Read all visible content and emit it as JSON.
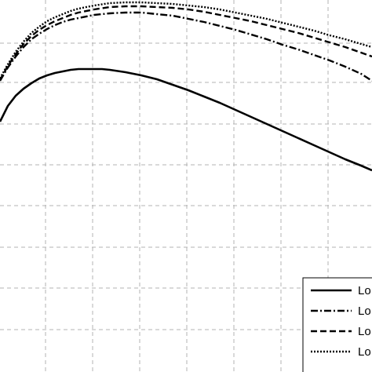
{
  "chart_data": {
    "type": "line",
    "title": "",
    "xlabel": "",
    "ylabel": "",
    "grid": true,
    "legend_placement": "bottom-right",
    "x_view": [
      0,
      474
    ],
    "y_view": [
      0,
      474
    ],
    "x_grid": [
      58,
      118,
      178,
      238,
      298,
      358,
      418
    ],
    "y_grid": [
      55,
      105,
      158,
      210,
      262,
      315,
      367,
      420
    ],
    "colors": {
      "line": "#000000",
      "grid": "#b3b3b3",
      "legend_border": "#000000"
    },
    "series": [
      {
        "name": "Lo",
        "style": "solid",
        "x": [
          0,
          10,
          20,
          30,
          40,
          50,
          60,
          70,
          80,
          90,
          100,
          110,
          120,
          130,
          140,
          160,
          180,
          200,
          220,
          240,
          260,
          280,
          300,
          320,
          340,
          360,
          380,
          400,
          420,
          440,
          460,
          474
        ],
        "y": [
          155,
          135,
          122,
          113,
          106,
          100,
          96,
          93,
          91,
          89,
          88,
          88,
          88,
          88,
          89,
          92,
          96,
          101,
          108,
          115,
          123,
          131,
          140,
          149,
          158,
          167,
          176,
          185,
          194,
          203,
          211,
          217
        ]
      },
      {
        "name": "Lo",
        "style": "dashdot",
        "x": [
          0,
          10,
          20,
          30,
          40,
          50,
          60,
          70,
          80,
          90,
          100,
          120,
          140,
          160,
          180,
          200,
          220,
          240,
          260,
          280,
          300,
          320,
          340,
          360,
          380,
          400,
          420,
          440,
          460,
          474
        ],
        "y": [
          103,
          86,
          72,
          60,
          50,
          43,
          37,
          32,
          28,
          25,
          23,
          19,
          17,
          16,
          16,
          18,
          20,
          24,
          28,
          33,
          38,
          44,
          50,
          57,
          63,
          70,
          77,
          85,
          94,
          103
        ]
      },
      {
        "name": "Lo",
        "style": "dashed",
        "x": [
          0,
          10,
          20,
          30,
          40,
          50,
          60,
          70,
          80,
          90,
          100,
          120,
          140,
          160,
          180,
          200,
          220,
          240,
          260,
          280,
          300,
          320,
          340,
          360,
          380,
          400,
          420,
          440,
          460,
          474
        ],
        "y": [
          102,
          84,
          69,
          56,
          46,
          38,
          32,
          27,
          23,
          19,
          16,
          12,
          9,
          8,
          8,
          9,
          10,
          12,
          15,
          19,
          23,
          27,
          32,
          37,
          42,
          48,
          54,
          60,
          67,
          72
        ]
      },
      {
        "name": "Lo",
        "style": "dotted",
        "x": [
          0,
          10,
          20,
          30,
          40,
          50,
          60,
          70,
          80,
          90,
          100,
          120,
          140,
          160,
          180,
          200,
          220,
          240,
          260,
          280,
          300,
          320,
          340,
          360,
          380,
          400,
          420,
          440,
          460,
          474
        ],
        "y": [
          100,
          82,
          66,
          53,
          42,
          34,
          27,
          22,
          18,
          14,
          11,
          7,
          4,
          3,
          3,
          4,
          5,
          7,
          9,
          12,
          16,
          20,
          24,
          29,
          34,
          39,
          45,
          50,
          56,
          60
        ]
      }
    ],
    "legend": {
      "entries": [
        "Lo",
        "Lo",
        "Lo",
        "Lo"
      ],
      "styles": [
        "solid",
        "dashdot",
        "dashed",
        "dotted"
      ]
    }
  }
}
